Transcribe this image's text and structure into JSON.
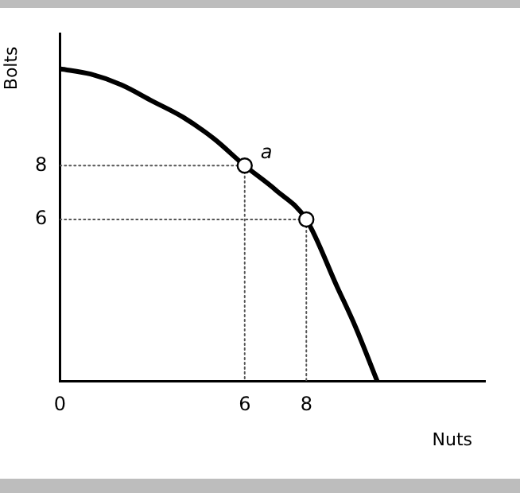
{
  "chart_data": {
    "type": "line",
    "xlabel": "Nuts",
    "ylabel": "Bolts",
    "xlim": [
      0,
      13.8
    ],
    "ylim": [
      0,
      12.9
    ],
    "xticks": [
      0,
      6,
      8
    ],
    "yticks": [
      6,
      8
    ],
    "series": [
      {
        "color": "#000000",
        "marker": "none",
        "line_style": "solid",
        "x": [
          0,
          1,
          2,
          3,
          4,
          5,
          6,
          7,
          8,
          9,
          9.6,
          10.3
        ],
        "values": [
          11.6,
          11.4,
          11.0,
          10.4,
          9.8,
          9.0,
          8,
          7.1,
          6,
          3.5,
          2,
          0
        ]
      },
      {
        "color": "#555555",
        "marker": "none",
        "line_style": "dotted",
        "x": [
          0,
          6,
          6
        ],
        "values": [
          8,
          8,
          0
        ]
      },
      {
        "color": "#555555",
        "marker": "none",
        "line_style": "dotted",
        "x": [
          0,
          8,
          8
        ],
        "values": [
          6,
          6,
          0
        ]
      },
      {
        "type": "scatter",
        "color": "#000000",
        "marker": "circle",
        "x": [
          6,
          8
        ],
        "values": [
          8,
          6
        ]
      }
    ],
    "annotations": [
      {
        "text": "a",
        "x": 6,
        "y": 8
      }
    ]
  }
}
